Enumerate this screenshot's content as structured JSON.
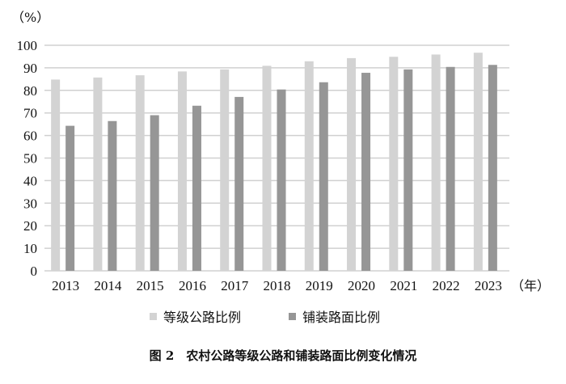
{
  "chart_data": {
    "type": "bar",
    "title": "图 2　农村公路等级公路和铺装路面比例变化情况",
    "y_unit": "（%）",
    "x_unit": "（年）",
    "categories": [
      "2013",
      "2014",
      "2015",
      "2016",
      "2017",
      "2018",
      "2019",
      "2020",
      "2021",
      "2022",
      "2023"
    ],
    "series": [
      {
        "name": "等级公路比例",
        "color": "#d3d3d3",
        "values": [
          84.8,
          85.7,
          86.7,
          88.4,
          89.3,
          90.9,
          92.9,
          94.3,
          94.9,
          95.9,
          96.7
        ]
      },
      {
        "name": "铺装路面比例",
        "color": "#969696",
        "values": [
          64.3,
          66.4,
          69.0,
          73.2,
          77.1,
          80.4,
          83.6,
          87.8,
          89.3,
          90.4,
          91.3
        ]
      }
    ],
    "ylim": [
      0,
      100
    ],
    "yticks": [
      0,
      10,
      20,
      30,
      40,
      50,
      60,
      70,
      80,
      90,
      100
    ],
    "grid": true,
    "legend": "bottom"
  }
}
